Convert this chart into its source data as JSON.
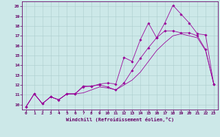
{
  "xlabel": "Windchill (Refroidissement éolien,°C)",
  "bg_color": "#cce8e8",
  "line_color": "#990099",
  "grid_color": "#aacccc",
  "axis_color": "#660066",
  "xlim": [
    -0.5,
    23.5
  ],
  "ylim": [
    9.5,
    20.5
  ],
  "xticks": [
    0,
    1,
    2,
    3,
    4,
    5,
    6,
    7,
    8,
    9,
    10,
    11,
    12,
    13,
    14,
    15,
    16,
    17,
    18,
    19,
    20,
    21,
    22,
    23
  ],
  "yticks": [
    10,
    11,
    12,
    13,
    14,
    15,
    16,
    17,
    18,
    19,
    20
  ],
  "series1_x": [
    0,
    1,
    2,
    3,
    4,
    5,
    6,
    7,
    8,
    9,
    10,
    11,
    12,
    13,
    14,
    15,
    16,
    17,
    18,
    19,
    20,
    21,
    22,
    23
  ],
  "series1_y": [
    9.8,
    11.1,
    10.1,
    10.8,
    10.5,
    11.1,
    11.1,
    11.9,
    11.85,
    12.1,
    12.2,
    12.1,
    14.8,
    14.4,
    16.6,
    18.3,
    16.8,
    18.3,
    20.1,
    19.2,
    18.3,
    17.2,
    17.1,
    12.1
  ],
  "series2_x": [
    0,
    1,
    2,
    3,
    4,
    5,
    6,
    7,
    8,
    9,
    10,
    11,
    12,
    13,
    14,
    15,
    16,
    17,
    18,
    19,
    20,
    21,
    22,
    23
  ],
  "series2_y": [
    9.8,
    11.1,
    10.1,
    10.8,
    10.5,
    11.1,
    11.1,
    11.8,
    11.9,
    12.0,
    11.8,
    11.5,
    12.2,
    13.5,
    14.7,
    15.8,
    16.8,
    17.5,
    17.5,
    17.3,
    17.3,
    17.0,
    15.6,
    12.1
  ],
  "series3_x": [
    0,
    1,
    2,
    3,
    4,
    5,
    6,
    7,
    8,
    9,
    10,
    11,
    12,
    13,
    14,
    15,
    16,
    17,
    18,
    19,
    20,
    21,
    22,
    23
  ],
  "series3_y": [
    9.8,
    11.1,
    10.1,
    10.8,
    10.5,
    11.1,
    11.1,
    11.2,
    11.5,
    11.8,
    11.7,
    11.5,
    12.0,
    12.5,
    13.3,
    14.4,
    15.5,
    16.3,
    17.0,
    17.2,
    17.0,
    16.8,
    15.5,
    12.1
  ]
}
